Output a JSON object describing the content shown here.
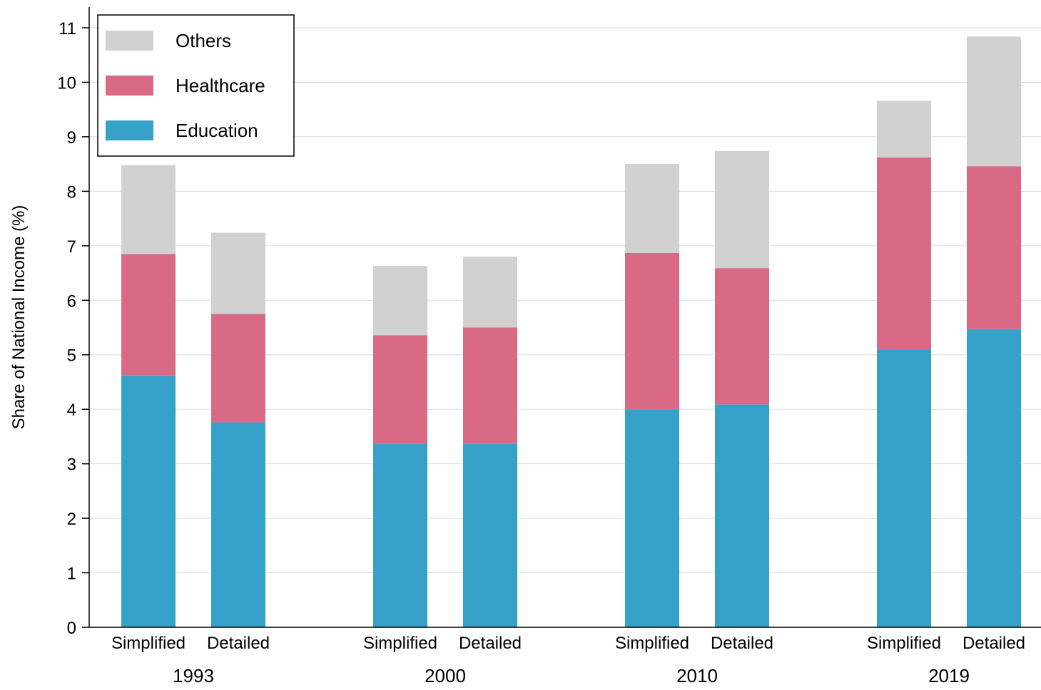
{
  "chart_data": {
    "type": "bar",
    "stacked": true,
    "ylabel": "Share of National Income (%)",
    "ylim": [
      0,
      11
    ],
    "yticks": [
      0,
      1,
      2,
      3,
      4,
      5,
      6,
      7,
      8,
      9,
      10,
      11
    ],
    "grid": true,
    "legend_position": "top-left",
    "groups": [
      {
        "year": "1993",
        "bars": [
          {
            "label": "Simplified",
            "values": {
              "Education": 4.62,
              "Healthcare": 2.23,
              "Others": 1.63
            }
          },
          {
            "label": "Detailed",
            "values": {
              "Education": 3.76,
              "Healthcare": 1.99,
              "Others": 1.49
            }
          }
        ]
      },
      {
        "year": "2000",
        "bars": [
          {
            "label": "Simplified",
            "values": {
              "Education": 3.37,
              "Healthcare": 1.99,
              "Others": 1.27
            }
          },
          {
            "label": "Detailed",
            "values": {
              "Education": 3.37,
              "Healthcare": 2.13,
              "Others": 1.3
            }
          }
        ]
      },
      {
        "year": "2010",
        "bars": [
          {
            "label": "Simplified",
            "values": {
              "Education": 4.0,
              "Healthcare": 2.87,
              "Others": 1.63
            }
          },
          {
            "label": "Detailed",
            "values": {
              "Education": 4.09,
              "Healthcare": 2.5,
              "Others": 2.15
            }
          }
        ]
      },
      {
        "year": "2019",
        "bars": [
          {
            "label": "Simplified",
            "values": {
              "Education": 5.1,
              "Healthcare": 3.52,
              "Others": 1.04
            }
          },
          {
            "label": "Detailed",
            "values": {
              "Education": 5.47,
              "Healthcare": 2.99,
              "Others": 2.38
            }
          }
        ]
      }
    ],
    "series": [
      {
        "name": "Education",
        "color": "#35a1c8"
      },
      {
        "name": "Healthcare",
        "color": "#d96a86"
      },
      {
        "name": "Others",
        "color": "#d1d1d1"
      }
    ],
    "legend_order": [
      "Others",
      "Healthcare",
      "Education"
    ]
  }
}
